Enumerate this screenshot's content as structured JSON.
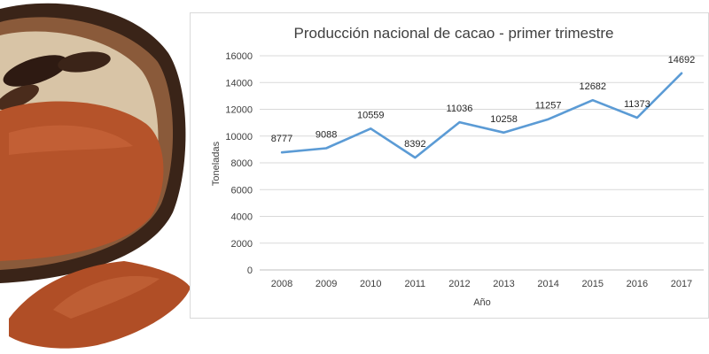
{
  "colors": {
    "series": "#5b9bd5",
    "cacao_shell_dark": "#3a2418",
    "cacao_shell_mid": "#8a5a3a",
    "cacao_inner": "#d8c4a6",
    "cocoa_powder": "#b5532a"
  },
  "chart_data": {
    "type": "line",
    "title": "Producción nacional de cacao - primer trimestre",
    "xlabel": "Año",
    "ylabel": "Toneladas",
    "x": [
      "2008",
      "2009",
      "2010",
      "2011",
      "2012",
      "2013",
      "2014",
      "2015",
      "2016",
      "2017"
    ],
    "series": [
      {
        "values": [
          8777,
          9088,
          10559,
          8392,
          11036,
          10258,
          11257,
          12682,
          11373,
          14692
        ]
      }
    ],
    "ylim": [
      0,
      16000
    ],
    "yticks": [
      0,
      2000,
      4000,
      6000,
      8000,
      10000,
      12000,
      14000,
      16000
    ],
    "grid": true,
    "legend": "none",
    "data_labels": true
  }
}
